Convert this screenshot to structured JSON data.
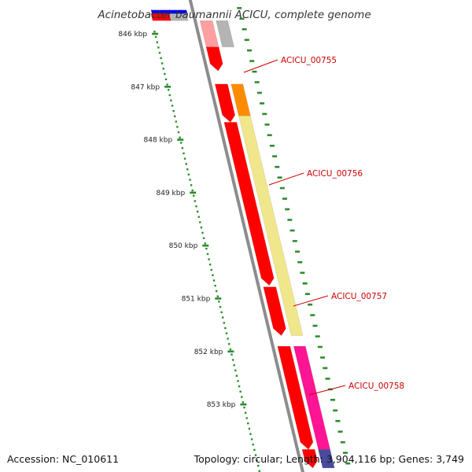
{
  "title": "Acinetobacter baumannii ACICU, complete genome",
  "footer": {
    "accession": "Accession: NC_010611",
    "summary": "Topology: circular; Length: 3,904,116 bp; Genes: 3,749"
  },
  "colors": {
    "backbone": "#8c8c8c",
    "ticks": "#2e8b2e",
    "label_red": "#cc0000",
    "red_gene": "#ff0000",
    "orange_gene": "#ff8c00",
    "pale_yellow_gene": "#f0e68c",
    "magenta_gene": "#ff1493",
    "blue_gene": "#0000ff",
    "grey_gene": "#b4b4b4",
    "pink_gene": "#ff9f9f",
    "navy_gene": "#4a4a9c"
  },
  "chart_data": {
    "type": "genome-map",
    "title": "Acinetobacter baumannii ACICU, complete genome",
    "scale_unit": "kbp",
    "scale_ticks": [
      {
        "value": 846,
        "label": "846 kbp"
      },
      {
        "value": 847,
        "label": "847 kbp"
      },
      {
        "value": 848,
        "label": "848 kbp"
      },
      {
        "value": 849,
        "label": "849 kbp"
      },
      {
        "value": 850,
        "label": "850 kbp"
      },
      {
        "value": 851,
        "label": "851 kbp"
      },
      {
        "value": 852,
        "label": "852 kbp"
      },
      {
        "value": 853,
        "label": "853 kbp"
      }
    ],
    "genes": [
      {
        "track": "A",
        "start": 845.55,
        "end": 845.62,
        "color": "blue_gene"
      },
      {
        "track": "A",
        "start": 845.62,
        "end": 845.75,
        "color": "red_gene"
      },
      {
        "track": "B",
        "start": 845.55,
        "end": 845.62,
        "color": "blue_gene"
      },
      {
        "track": "B",
        "start": 845.62,
        "end": 845.75,
        "color": "grey_gene"
      },
      {
        "track": "C",
        "start": 845.75,
        "end": 846.25,
        "color": "pink_gene"
      },
      {
        "track": "D",
        "start": 845.75,
        "end": 846.25,
        "color": "grey_gene"
      },
      {
        "track": "C",
        "start": 846.25,
        "end": 846.7,
        "color": "red_gene"
      },
      {
        "track": "C",
        "start": 846.95,
        "end": 847.67,
        "color": "red_gene"
      },
      {
        "track": "D",
        "start": 846.95,
        "end": 847.55,
        "color": "orange_gene",
        "label": "ACICU_00755"
      },
      {
        "track": "C",
        "start": 847.67,
        "end": 850.75,
        "color": "red_gene"
      },
      {
        "track": "D",
        "start": 847.55,
        "end": 851.7,
        "color": "pale_yellow_gene",
        "label": "ACICU_00756"
      },
      {
        "track": "C",
        "start": 850.78,
        "end": 851.7,
        "color": "red_gene",
        "label": "ACICU_00757"
      },
      {
        "track": "C",
        "start": 851.9,
        "end": 853.85,
        "color": "red_gene"
      },
      {
        "track": "D",
        "start": 851.9,
        "end": 853.85,
        "color": "magenta_gene",
        "label": "ACICU_00758"
      },
      {
        "track": "C",
        "start": 853.85,
        "end": 854.2,
        "color": "red_gene"
      },
      {
        "track": "D",
        "start": 853.85,
        "end": 854.2,
        "color": "navy_gene"
      }
    ],
    "gene_labels": [
      "ACICU_00755",
      "ACICU_00756",
      "ACICU_00757",
      "ACICU_00758"
    ]
  }
}
